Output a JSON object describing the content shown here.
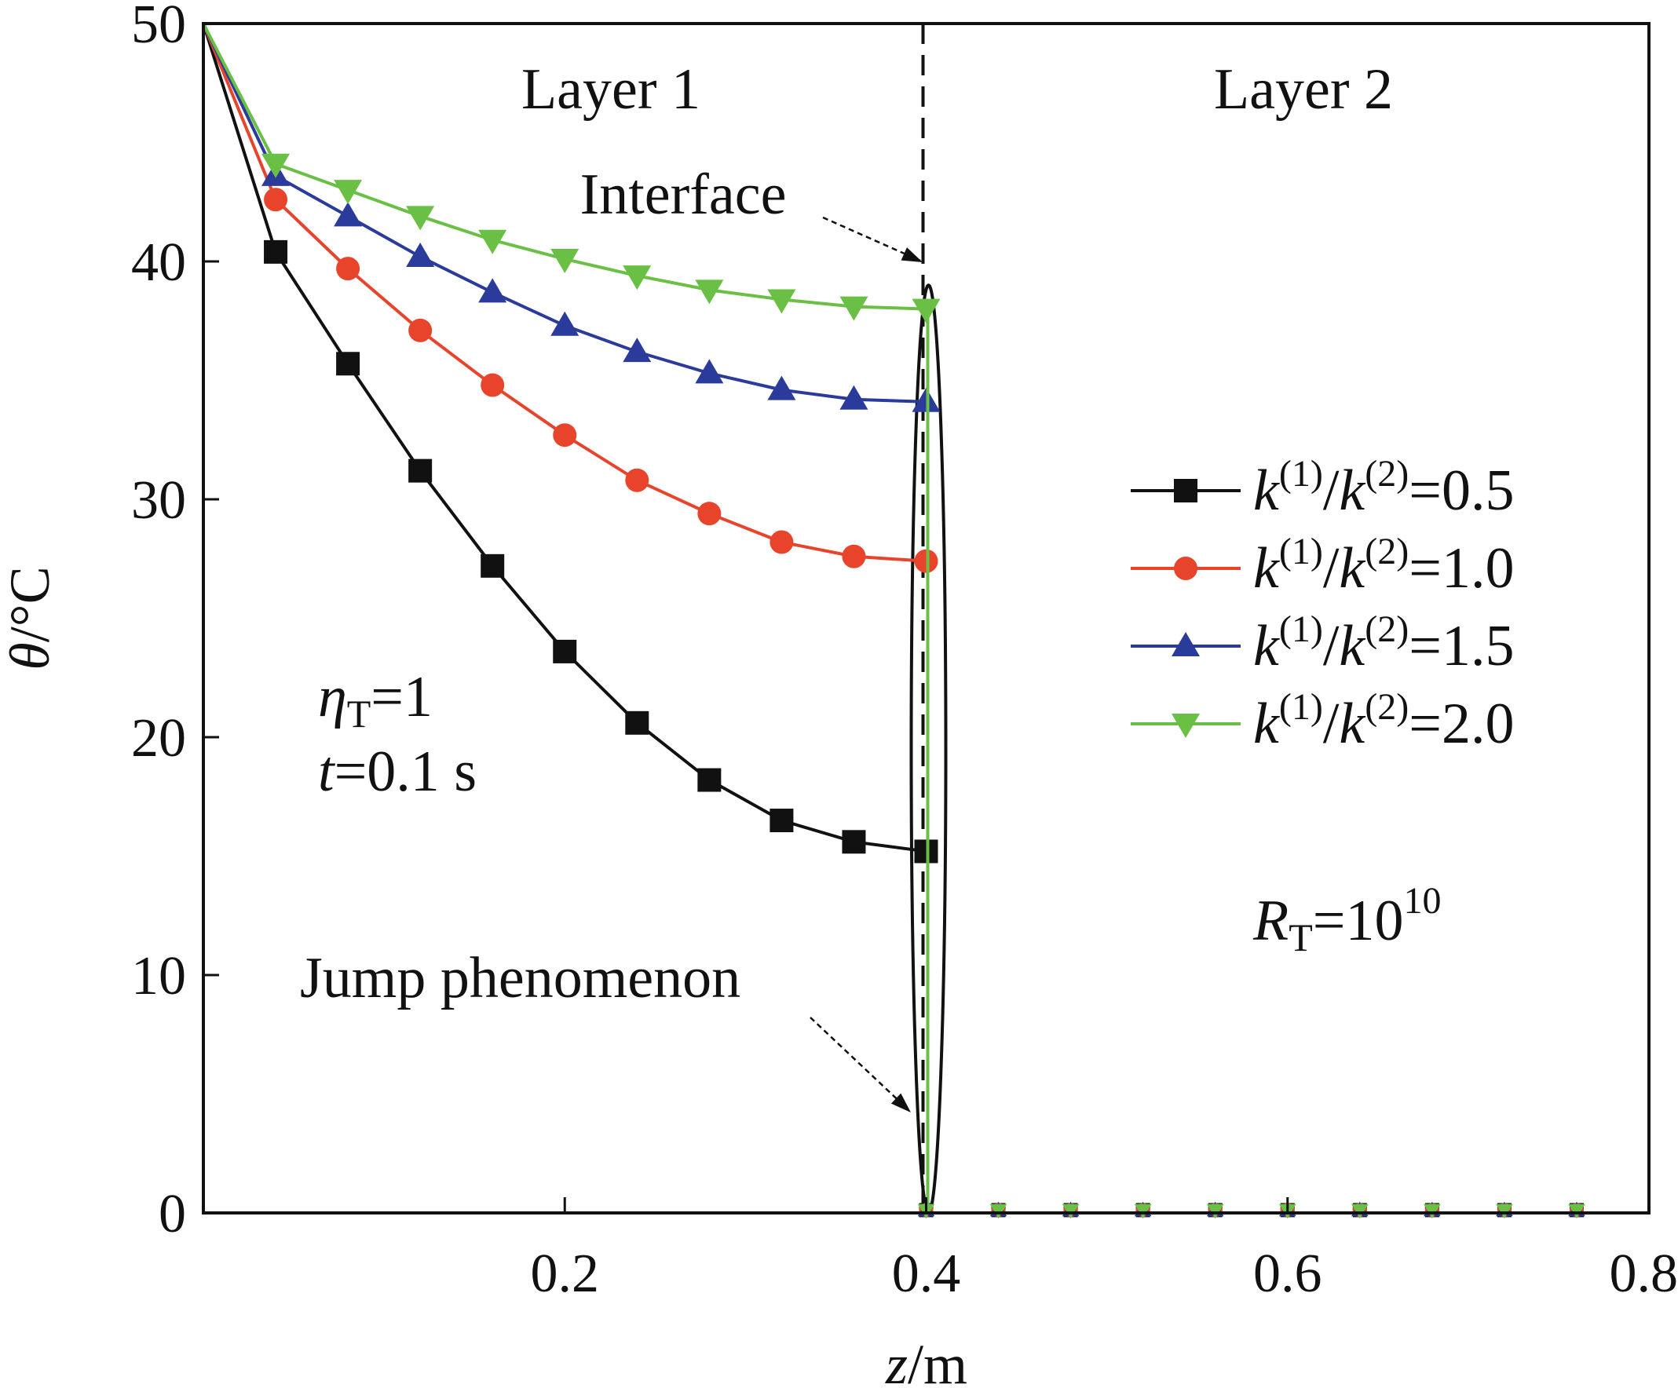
{
  "chart_data": {
    "type": "line",
    "xlabel_var": "z",
    "xlabel_unit": "/m",
    "ylabel_var": "θ",
    "ylabel_unit": "/°C",
    "xlim": [
      0,
      0.8
    ],
    "ylim": [
      0,
      50
    ],
    "xticks": [
      {
        "value": 0.2,
        "label": "0.2"
      },
      {
        "value": 0.4,
        "label": "0.4"
      },
      {
        "value": 0.6,
        "label": "0.6"
      },
      {
        "value": 0.8,
        "label": "0.8"
      }
    ],
    "yticks": [
      {
        "value": 0,
        "label": "0"
      },
      {
        "value": 10,
        "label": "10"
      },
      {
        "value": 20,
        "label": "20"
      },
      {
        "value": 30,
        "label": "30"
      },
      {
        "value": 40,
        "label": "40"
      },
      {
        "value": 50,
        "label": "50"
      }
    ],
    "interface_z": 0.4,
    "legend_position": "right",
    "annotations": {
      "layer1": "Layer 1",
      "layer2": "Layer 2",
      "interface": "Interface",
      "jump": "Jump phenomenon",
      "eta_symbol": "η",
      "eta_sub": "T",
      "eta_value": "=1",
      "t_symbol": "t",
      "t_value": "=0.1 s",
      "rt_symbol": "R",
      "rt_sub": "T",
      "rt_value": "=10",
      "rt_exp": "10"
    },
    "series": [
      {
        "name": "k(1)/k(2)=0.5",
        "ratio": "=0.5",
        "color": "#111111",
        "marker": "square",
        "layer1": [
          [
            0,
            50
          ],
          [
            0.04,
            40.4
          ],
          [
            0.08,
            35.7
          ],
          [
            0.12,
            31.2
          ],
          [
            0.16,
            27.2
          ],
          [
            0.2,
            23.6
          ],
          [
            0.24,
            20.6
          ],
          [
            0.28,
            18.2
          ],
          [
            0.32,
            16.5
          ],
          [
            0.36,
            15.6
          ],
          [
            0.4,
            15.2
          ]
        ],
        "layer2": [
          [
            0.4,
            0
          ],
          [
            0.44,
            0
          ],
          [
            0.48,
            0
          ],
          [
            0.52,
            0
          ],
          [
            0.56,
            0
          ],
          [
            0.6,
            0
          ],
          [
            0.64,
            0
          ],
          [
            0.68,
            0
          ],
          [
            0.72,
            0
          ],
          [
            0.76,
            0
          ],
          [
            0.8,
            0
          ]
        ]
      },
      {
        "name": "k(1)/k(2)=1.0",
        "ratio": "=1.0",
        "color": "#e8432b",
        "marker": "circle",
        "layer1": [
          [
            0,
            50
          ],
          [
            0.04,
            42.6
          ],
          [
            0.08,
            39.7
          ],
          [
            0.12,
            37.1
          ],
          [
            0.16,
            34.8
          ],
          [
            0.2,
            32.7
          ],
          [
            0.24,
            30.8
          ],
          [
            0.28,
            29.4
          ],
          [
            0.32,
            28.2
          ],
          [
            0.36,
            27.6
          ],
          [
            0.4,
            27.4
          ]
        ],
        "layer2": [
          [
            0.4,
            0
          ],
          [
            0.44,
            0
          ],
          [
            0.48,
            0
          ],
          [
            0.52,
            0
          ],
          [
            0.56,
            0
          ],
          [
            0.6,
            0
          ],
          [
            0.64,
            0
          ],
          [
            0.68,
            0
          ],
          [
            0.72,
            0
          ],
          [
            0.76,
            0
          ],
          [
            0.8,
            0
          ]
        ]
      },
      {
        "name": "k(1)/k(2)=1.5",
        "ratio": "=1.5",
        "color": "#2b3b9c",
        "marker": "triangle-up",
        "layer1": [
          [
            0,
            50
          ],
          [
            0.04,
            43.6
          ],
          [
            0.08,
            41.9
          ],
          [
            0.12,
            40.2
          ],
          [
            0.16,
            38.7
          ],
          [
            0.2,
            37.3
          ],
          [
            0.24,
            36.2
          ],
          [
            0.28,
            35.3
          ],
          [
            0.32,
            34.6
          ],
          [
            0.36,
            34.2
          ],
          [
            0.4,
            34.1
          ]
        ],
        "layer2": [
          [
            0.4,
            0
          ],
          [
            0.44,
            0
          ],
          [
            0.48,
            0
          ],
          [
            0.52,
            0
          ],
          [
            0.56,
            0
          ],
          [
            0.6,
            0
          ],
          [
            0.64,
            0
          ],
          [
            0.68,
            0
          ],
          [
            0.72,
            0
          ],
          [
            0.76,
            0
          ],
          [
            0.8,
            0
          ]
        ]
      },
      {
        "name": "k(1)/k(2)=2.0",
        "ratio": "=2.0",
        "color": "#6abf45",
        "marker": "triangle-down",
        "layer1": [
          [
            0,
            50
          ],
          [
            0.04,
            44.1
          ],
          [
            0.08,
            43.0
          ],
          [
            0.12,
            41.9
          ],
          [
            0.16,
            40.9
          ],
          [
            0.2,
            40.1
          ],
          [
            0.24,
            39.4
          ],
          [
            0.28,
            38.8
          ],
          [
            0.32,
            38.4
          ],
          [
            0.36,
            38.1
          ],
          [
            0.4,
            38.0
          ]
        ],
        "layer2": [
          [
            0.4,
            0
          ],
          [
            0.44,
            0
          ],
          [
            0.48,
            0
          ],
          [
            0.52,
            0
          ],
          [
            0.56,
            0
          ],
          [
            0.6,
            0
          ],
          [
            0.64,
            0
          ],
          [
            0.68,
            0
          ],
          [
            0.72,
            0
          ],
          [
            0.76,
            0
          ],
          [
            0.8,
            0
          ]
        ]
      }
    ]
  }
}
